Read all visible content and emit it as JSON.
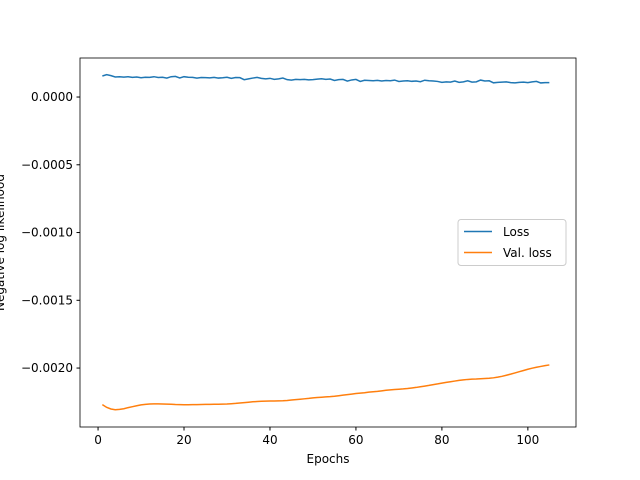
{
  "chart_data": {
    "type": "line",
    "xlabel": "Epochs",
    "ylabel": "Negative log likelihood",
    "x": [
      1,
      2,
      3,
      4,
      5,
      6,
      7,
      8,
      9,
      10,
      11,
      12,
      13,
      14,
      15,
      16,
      17,
      18,
      19,
      20,
      21,
      22,
      23,
      24,
      25,
      26,
      27,
      28,
      29,
      30,
      31,
      32,
      33,
      34,
      35,
      36,
      37,
      38,
      39,
      40,
      41,
      42,
      43,
      44,
      45,
      46,
      47,
      48,
      49,
      50,
      51,
      52,
      53,
      54,
      55,
      56,
      57,
      58,
      59,
      60,
      61,
      62,
      63,
      64,
      65,
      66,
      67,
      68,
      69,
      70,
      71,
      72,
      73,
      74,
      75,
      76,
      77,
      78,
      79,
      80,
      81,
      82,
      83,
      84,
      85,
      86,
      87,
      88,
      89,
      90,
      91,
      92,
      93,
      94,
      95,
      96,
      97,
      98,
      99,
      100,
      101,
      102,
      103,
      104,
      105
    ],
    "series": [
      {
        "name": "Loss",
        "color": "#1f77b4",
        "values": [
          0.000155,
          0.000165,
          0.000158,
          0.000148,
          0.00015,
          0.000147,
          0.00015,
          0.000145,
          0.000148,
          0.000142,
          0.000146,
          0.000145,
          0.00015,
          0.000144,
          0.000146,
          0.00014,
          0.00015,
          0.000152,
          0.000141,
          0.00015,
          0.000146,
          0.000145,
          0.00014,
          0.000144,
          0.000143,
          0.000141,
          0.000145,
          0.00014,
          0.000142,
          0.000146,
          0.000138,
          0.000144,
          0.000143,
          0.000128,
          0.000134,
          0.00014,
          0.000145,
          0.000138,
          0.000134,
          0.000138,
          0.00013,
          0.000134,
          0.00014,
          0.000128,
          0.000125,
          0.00013,
          0.000128,
          0.00013,
          0.000127,
          0.000128,
          0.000132,
          0.000135,
          0.00013,
          0.000133,
          0.000122,
          0.000128,
          0.00013,
          0.000118,
          0.000126,
          0.00013,
          0.000115,
          0.000124,
          0.000122,
          0.00012,
          0.000123,
          0.000118,
          0.000122,
          0.00012,
          0.000125,
          0.000115,
          0.000118,
          0.00012,
          0.000116,
          0.000118,
          0.000113,
          0.000124,
          0.00012,
          0.000118,
          0.000115,
          0.000108,
          0.000112,
          0.00011,
          0.000118,
          0.000108,
          0.000112,
          0.00012,
          0.00011,
          0.000112,
          0.000125,
          0.000118,
          0.00012,
          0.000105,
          0.000108,
          0.00011,
          0.000112,
          0.000106,
          0.000104,
          0.000108,
          0.00011,
          0.000106,
          0.000112,
          0.000115,
          0.000104,
          0.000106,
          0.000106
        ]
      },
      {
        "name": "Val. loss",
        "color": "#ff7f0e",
        "values": [
          -0.00227,
          -0.00229,
          -0.002302,
          -0.002308,
          -0.002305,
          -0.0023,
          -0.002292,
          -0.002285,
          -0.002278,
          -0.002272,
          -0.002268,
          -0.002265,
          -0.002264,
          -0.002264,
          -0.002265,
          -0.002266,
          -0.002267,
          -0.002269,
          -0.00227,
          -0.002271,
          -0.002271,
          -0.00227,
          -0.00227,
          -0.002269,
          -0.002268,
          -0.002268,
          -0.002267,
          -0.002267,
          -0.002266,
          -0.002265,
          -0.002263,
          -0.002261,
          -0.002258,
          -0.002255,
          -0.002252,
          -0.002249,
          -0.002247,
          -0.002245,
          -0.002244,
          -0.002243,
          -0.002243,
          -0.002242,
          -0.002241,
          -0.002239,
          -0.002236,
          -0.002233,
          -0.00223,
          -0.002227,
          -0.002224,
          -0.00222,
          -0.002217,
          -0.002215,
          -0.002213,
          -0.002211,
          -0.002208,
          -0.002204,
          -0.0022,
          -0.002196,
          -0.002192,
          -0.002188,
          -0.002185,
          -0.002182,
          -0.002178,
          -0.002175,
          -0.002172,
          -0.002168,
          -0.002164,
          -0.002161,
          -0.002158,
          -0.002156,
          -0.002154,
          -0.002151,
          -0.002147,
          -0.002143,
          -0.002138,
          -0.002133,
          -0.002128,
          -0.002122,
          -0.002117,
          -0.002111,
          -0.002106,
          -0.002101,
          -0.002096,
          -0.002091,
          -0.002087,
          -0.002084,
          -0.002082,
          -0.002081,
          -0.002079,
          -0.002077,
          -0.002075,
          -0.002072,
          -0.002067,
          -0.002061,
          -0.002053,
          -0.002045,
          -0.002036,
          -0.002027,
          -0.002018,
          -0.002009,
          -0.002001,
          -0.001994,
          -0.001988,
          -0.001982,
          -0.001977
        ]
      }
    ],
    "xlim": [
      -4.2,
      111.2
    ],
    "xticks": [
      0,
      20,
      40,
      60,
      80,
      100
    ],
    "ylim": [
      -0.002435,
      0.000288
    ],
    "yticks": [
      {
        "value": -0.002,
        "label": "−0.0020"
      },
      {
        "value": -0.0015,
        "label": "−0.0015"
      },
      {
        "value": -0.001,
        "label": "−0.0010"
      },
      {
        "value": -0.0005,
        "label": "−0.0005"
      },
      {
        "value": 0,
        "label": "0.0000"
      }
    ],
    "legend": "center right"
  }
}
